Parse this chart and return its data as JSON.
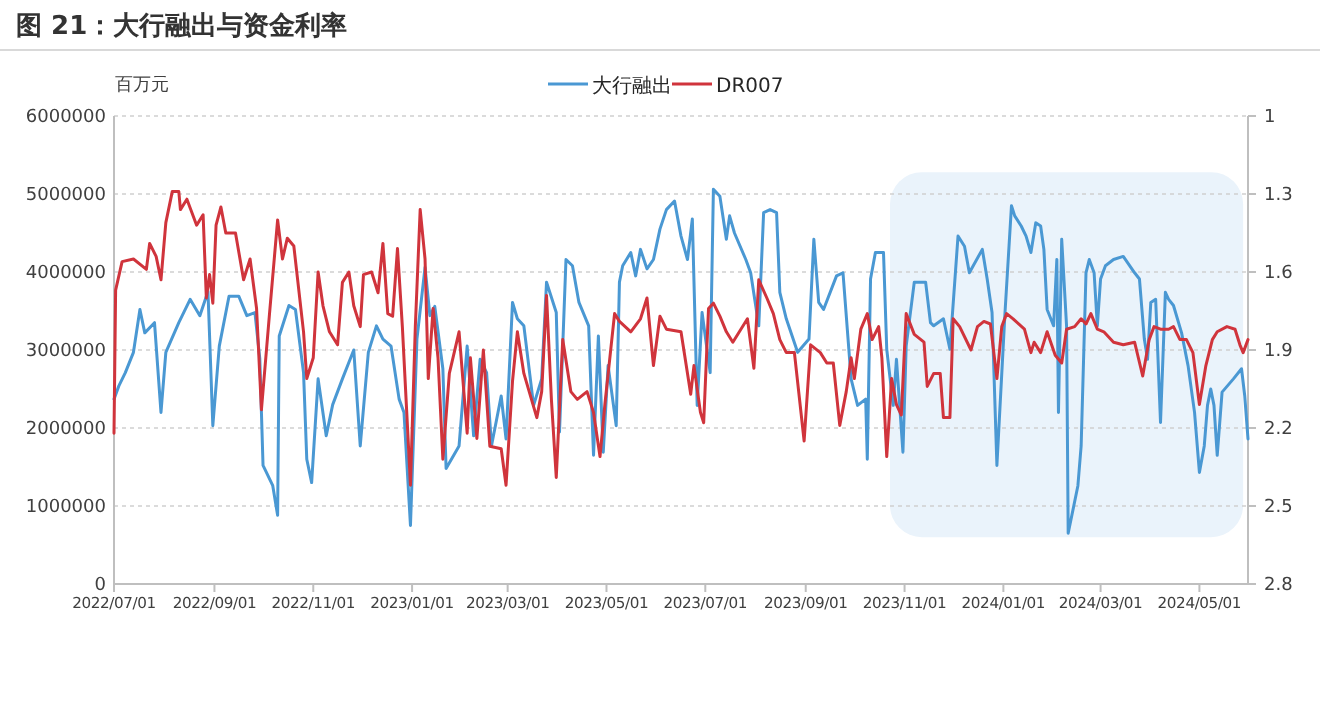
{
  "chart_data": {
    "type": "line",
    "title": "图 21：大行融出与资金利率",
    "ylabel": "百万元",
    "legend": "top",
    "grid": "y",
    "xlim": [
      "2022-07-01",
      "2024-05-31"
    ],
    "xticks": [
      {
        "value": "2022-07-01",
        "label": "2022/07/01"
      },
      {
        "value": "2022-09-01",
        "label": "2022/09/01"
      },
      {
        "value": "2022-11-01",
        "label": "2022/11/01"
      },
      {
        "value": "2023-01-01",
        "label": "2023/01/01"
      },
      {
        "value": "2023-03-01",
        "label": "2023/03/01"
      },
      {
        "value": "2023-05-01",
        "label": "2023/05/01"
      },
      {
        "value": "2023-07-01",
        "label": "2023/07/01"
      },
      {
        "value": "2023-09-01",
        "label": "2023/09/01"
      },
      {
        "value": "2023-11-01",
        "label": "2023/11/01"
      },
      {
        "value": "2024-01-01",
        "label": "2024/01/01"
      },
      {
        "value": "2024-03-01",
        "label": "2024/03/01"
      },
      {
        "value": "2024-05-01",
        "label": "2024/05/01"
      }
    ],
    "ylim": [
      0,
      6000000
    ],
    "yticks": [
      0,
      1000000,
      2000000,
      3000000,
      4000000,
      5000000,
      6000000
    ],
    "y2lim": [
      2.8,
      1
    ],
    "y2ticks": [
      1,
      1.3,
      1.6,
      1.9,
      2.2,
      2.5,
      2.8
    ],
    "bands": [
      {
        "axis": "x",
        "from": "2023-10-23",
        "to": "2024-05-28",
        "color": "#eaf3fb"
      }
    ],
    "series": [
      {
        "name": "大行融出",
        "color": "#4a98d3",
        "x": [
          "2022-07-01",
          "2022-07-04",
          "2022-07-08",
          "2022-07-13",
          "2022-07-17",
          "2022-07-20",
          "2022-07-26",
          "2022-07-30",
          "2022-08-02",
          "2022-08-10",
          "2022-08-17",
          "2022-08-23",
          "2022-08-28",
          "2022-08-31",
          "2022-09-04",
          "2022-09-10",
          "2022-09-16",
          "2022-09-21",
          "2022-09-26",
          "2022-09-29",
          "2022-10-01",
          "2022-10-07",
          "2022-10-10",
          "2022-10-11",
          "2022-10-17",
          "2022-10-21",
          "2022-10-26",
          "2022-10-28",
          "2022-10-31",
          "2022-11-04",
          "2022-11-09",
          "2022-11-13",
          "2022-11-19",
          "2022-11-26",
          "2022-11-30",
          "2022-12-05",
          "2022-12-10",
          "2022-12-14",
          "2022-12-19",
          "2022-12-24",
          "2022-12-27",
          "2022-12-31",
          "2023-01-04",
          "2023-01-09",
          "2023-01-12",
          "2023-01-15",
          "2023-01-20",
          "2023-01-22",
          "2023-01-30",
          "2023-02-04",
          "2023-02-08",
          "2023-02-12",
          "2023-02-16",
          "2023-02-19",
          "2023-02-25",
          "2023-02-28",
          "2023-03-04",
          "2023-03-07",
          "2023-03-11",
          "2023-03-17",
          "2023-03-22",
          "2023-03-25",
          "2023-03-31",
          "2023-04-02",
          "2023-04-06",
          "2023-04-10",
          "2023-04-14",
          "2023-04-20",
          "2023-04-23",
          "2023-04-26",
          "2023-04-29",
          "2023-05-02",
          "2023-05-07",
          "2023-05-09",
          "2023-05-11",
          "2023-05-16",
          "2023-05-19",
          "2023-05-22",
          "2023-05-26",
          "2023-05-30",
          "2023-06-03",
          "2023-06-07",
          "2023-06-12",
          "2023-06-16",
          "2023-06-20",
          "2023-06-23",
          "2023-06-26",
          "2023-06-29",
          "2023-07-04",
          "2023-07-06",
          "2023-07-10",
          "2023-07-14",
          "2023-07-16",
          "2023-07-19",
          "2023-07-26",
          "2023-07-29",
          "2023-08-03",
          "2023-08-06",
          "2023-08-10",
          "2023-08-14",
          "2023-08-16",
          "2023-08-20",
          "2023-08-27",
          "2023-09-03",
          "2023-09-06",
          "2023-09-09",
          "2023-09-12",
          "2023-09-20",
          "2023-09-24",
          "2023-09-29",
          "2023-10-03",
          "2023-10-08",
          "2023-10-09",
          "2023-10-11",
          "2023-10-14",
          "2023-10-19",
          "2023-10-21",
          "2023-10-25",
          "2023-10-27",
          "2023-10-31",
          "2023-11-02",
          "2023-11-07",
          "2023-11-14",
          "2023-11-17",
          "2023-11-19",
          "2023-11-25",
          "2023-11-29",
          "2023-12-04",
          "2023-12-08",
          "2023-12-11",
          "2023-12-19",
          "2023-12-22",
          "2023-12-25",
          "2023-12-28",
          "2024-01-02",
          "2024-01-06",
          "2024-01-08",
          "2024-01-12",
          "2024-01-15",
          "2024-01-18",
          "2024-01-21",
          "2024-01-24",
          "2024-01-26",
          "2024-01-28",
          "2024-02-01",
          "2024-02-03",
          "2024-02-04",
          "2024-02-06",
          "2024-02-09",
          "2024-02-10",
          "2024-02-16",
          "2024-02-18",
          "2024-02-21",
          "2024-02-23",
          "2024-02-26",
          "2024-02-28",
          "2024-03-01",
          "2024-03-04",
          "2024-03-09",
          "2024-03-15",
          "2024-03-22",
          "2024-03-25",
          "2024-03-28",
          "2024-03-30",
          "2024-04-01",
          "2024-04-04",
          "2024-04-07",
          "2024-04-10",
          "2024-04-12",
          "2024-04-15",
          "2024-04-20",
          "2024-04-24",
          "2024-04-28",
          "2024-05-01",
          "2024-05-04",
          "2024-05-06",
          "2024-05-08",
          "2024-05-10",
          "2024-05-12",
          "2024-05-15",
          "2024-05-22",
          "2024-05-27",
          "2024-05-29",
          "2024-05-31"
        ],
        "values": [
          2370000,
          2540000,
          2710000,
          2970000,
          3520000,
          3220000,
          3350000,
          2200000,
          2970000,
          3350000,
          3650000,
          3440000,
          3750000,
          2030000,
          3050000,
          3690000,
          3690000,
          3440000,
          3480000,
          2890000,
          1520000,
          1260000,
          880000,
          3180000,
          3570000,
          3520000,
          2710000,
          1600000,
          1300000,
          2630000,
          1900000,
          2300000,
          2630000,
          3000000,
          1770000,
          2970000,
          3310000,
          3140000,
          3050000,
          2370000,
          2200000,
          750000,
          3140000,
          4060000,
          3440000,
          3560000,
          2760000,
          1480000,
          1770000,
          3050000,
          1900000,
          2880000,
          2710000,
          1770000,
          2410000,
          1860000,
          3610000,
          3400000,
          3310000,
          2290000,
          2630000,
          3870000,
          3480000,
          1950000,
          4160000,
          4080000,
          3610000,
          3310000,
          1650000,
          3180000,
          1690000,
          2800000,
          2030000,
          3870000,
          4080000,
          4250000,
          3950000,
          4290000,
          4040000,
          4160000,
          4550000,
          4800000,
          4910000,
          4460000,
          4160000,
          4680000,
          2290000,
          3480000,
          2710000,
          5060000,
          4970000,
          4420000,
          4720000,
          4500000,
          4160000,
          3990000,
          3310000,
          4760000,
          4800000,
          4760000,
          3740000,
          3400000,
          2970000,
          3140000,
          4420000,
          3610000,
          3520000,
          3950000,
          3990000,
          2630000,
          2290000,
          2370000,
          1600000,
          3910000,
          4250000,
          4250000,
          3010000,
          2290000,
          2880000,
          1690000,
          3050000,
          3870000,
          3870000,
          3350000,
          3310000,
          3400000,
          3010000,
          4460000,
          4330000,
          3990000,
          4290000,
          3910000,
          3480000,
          1520000,
          3480000,
          4850000,
          4720000,
          4590000,
          4460000,
          4250000,
          4630000,
          4590000,
          4290000,
          3520000,
          3310000,
          4160000,
          2200000,
          4420000,
          3310000,
          650000,
          1260000,
          1770000,
          3990000,
          4160000,
          3990000,
          3310000,
          3910000,
          4080000,
          4160000,
          4200000,
          3990000,
          3910000,
          3140000,
          2880000,
          3610000,
          3650000,
          2070000,
          3740000,
          3650000,
          3570000,
          3220000,
          2800000,
          2200000,
          1430000,
          1770000,
          2290000,
          2500000,
          2290000,
          1650000,
          2460000,
          2630000,
          2760000,
          2410000,
          1860000
        ]
      },
      {
        "name": "DR007",
        "color": "#d0343c",
        "axis": "y2",
        "x": [
          "2022-07-01",
          "2022-07-02",
          "2022-07-06",
          "2022-07-13",
          "2022-07-21",
          "2022-07-23",
          "2022-07-27",
          "2022-07-30",
          "2022-08-02",
          "2022-08-06",
          "2022-08-10",
          "2022-08-11",
          "2022-08-15",
          "2022-08-21",
          "2022-08-25",
          "2022-08-27",
          "2022-08-29",
          "2022-08-31",
          "2022-09-02",
          "2022-09-05",
          "2022-09-08",
          "2022-09-14",
          "2022-09-19",
          "2022-09-23",
          "2022-09-27",
          "2022-09-30",
          "2022-10-05",
          "2022-10-10",
          "2022-10-13",
          "2022-10-16",
          "2022-10-20",
          "2022-10-26",
          "2022-10-28",
          "2022-11-01",
          "2022-11-04",
          "2022-11-07",
          "2022-11-11",
          "2022-11-16",
          "2022-11-19",
          "2022-11-23",
          "2022-11-26",
          "2022-11-30",
          "2022-12-02",
          "2022-12-07",
          "2022-12-11",
          "2022-12-14",
          "2022-12-17",
          "2022-12-20",
          "2022-12-23",
          "2022-12-26",
          "2022-12-31",
          "2023-01-03",
          "2023-01-06",
          "2023-01-09",
          "2023-01-11",
          "2023-01-14",
          "2023-01-17",
          "2023-01-20",
          "2023-01-24",
          "2023-01-30",
          "2023-02-04",
          "2023-02-06",
          "2023-02-10",
          "2023-02-14",
          "2023-02-18",
          "2023-02-25",
          "2023-02-28",
          "2023-03-04",
          "2023-03-07",
          "2023-03-11",
          "2023-03-19",
          "2023-03-22",
          "2023-03-25",
          "2023-03-28",
          "2023-03-31",
          "2023-04-04",
          "2023-04-09",
          "2023-04-13",
          "2023-04-19",
          "2023-04-23",
          "2023-04-27",
          "2023-04-30",
          "2023-05-06",
          "2023-05-09",
          "2023-05-16",
          "2023-05-22",
          "2023-05-26",
          "2023-05-30",
          "2023-06-03",
          "2023-06-07",
          "2023-06-16",
          "2023-06-22",
          "2023-06-24",
          "2023-06-28",
          "2023-06-30",
          "2023-07-03",
          "2023-07-06",
          "2023-07-10",
          "2023-07-14",
          "2023-07-18",
          "2023-07-27",
          "2023-07-31",
          "2023-08-03",
          "2023-08-08",
          "2023-08-12",
          "2023-08-16",
          "2023-08-20",
          "2023-08-25",
          "2023-08-31",
          "2023-09-04",
          "2023-09-10",
          "2023-09-14",
          "2023-09-18",
          "2023-09-22",
          "2023-09-26",
          "2023-09-29",
          "2023-10-01",
          "2023-10-05",
          "2023-10-09",
          "2023-10-12",
          "2023-10-16",
          "2023-10-18",
          "2023-10-21",
          "2023-10-24",
          "2023-10-27",
          "2023-10-30",
          "2023-11-02",
          "2023-11-07",
          "2023-11-13",
          "2023-11-15",
          "2023-11-19",
          "2023-11-23",
          "2023-11-25",
          "2023-11-29",
          "2023-12-01",
          "2023-12-05",
          "2023-12-12",
          "2023-12-16",
          "2023-12-20",
          "2023-12-24",
          "2023-12-28",
          "2023-12-31",
          "2024-01-03",
          "2024-01-07",
          "2024-01-14",
          "2024-01-18",
          "2024-01-20",
          "2024-01-24",
          "2024-01-28",
          "2024-02-02",
          "2024-02-06",
          "2024-02-09",
          "2024-02-14",
          "2024-02-18",
          "2024-02-21",
          "2024-02-24",
          "2024-02-28",
          "2024-03-03",
          "2024-03-09",
          "2024-03-15",
          "2024-03-22",
          "2024-03-27",
          "2024-03-31",
          "2024-04-03",
          "2024-04-07",
          "2024-04-12",
          "2024-04-15",
          "2024-04-19",
          "2024-04-23",
          "2024-04-27",
          "2024-05-01",
          "2024-05-05",
          "2024-05-09",
          "2024-05-12",
          "2024-05-18",
          "2024-05-23",
          "2024-05-26",
          "2024-05-28",
          "2024-05-31"
        ],
        "values": [
          2.22,
          1.67,
          1.56,
          1.55,
          1.59,
          1.49,
          1.54,
          1.63,
          1.41,
          1.29,
          1.29,
          1.36,
          1.32,
          1.42,
          1.38,
          1.7,
          1.61,
          1.72,
          1.42,
          1.35,
          1.45,
          1.45,
          1.63,
          1.55,
          1.74,
          2.13,
          1.76,
          1.4,
          1.55,
          1.47,
          1.5,
          1.83,
          2.01,
          1.93,
          1.6,
          1.73,
          1.83,
          1.88,
          1.64,
          1.6,
          1.73,
          1.81,
          1.61,
          1.6,
          1.68,
          1.49,
          1.76,
          1.77,
          1.51,
          1.81,
          2.42,
          1.81,
          1.36,
          1.55,
          2.01,
          1.74,
          1.93,
          2.32,
          1.99,
          1.83,
          2.22,
          1.93,
          2.24,
          1.9,
          2.27,
          2.28,
          2.42,
          2.02,
          1.83,
          1.99,
          2.16,
          2.06,
          1.69,
          2.09,
          2.39,
          1.86,
          2.06,
          2.09,
          2.06,
          2.14,
          2.31,
          2.11,
          1.76,
          1.79,
          1.83,
          1.78,
          1.7,
          1.96,
          1.77,
          1.82,
          1.83,
          2.07,
          1.96,
          2.14,
          2.18,
          1.74,
          1.72,
          1.77,
          1.83,
          1.87,
          1.78,
          1.97,
          1.63,
          1.7,
          1.76,
          1.86,
          1.91,
          1.91,
          2.25,
          1.88,
          1.91,
          1.95,
          1.95,
          2.19,
          2.06,
          1.93,
          2.01,
          1.82,
          1.76,
          1.86,
          1.81,
          1.93,
          2.31,
          2.01,
          2.11,
          2.15,
          1.76,
          1.84,
          1.87,
          2.04,
          1.99,
          1.99,
          2.16,
          2.16,
          1.78,
          1.81,
          1.9,
          1.81,
          1.79,
          1.8,
          2.01,
          1.81,
          1.76,
          1.78,
          1.82,
          1.91,
          1.87,
          1.91,
          1.83,
          1.92,
          1.95,
          1.82,
          1.81,
          1.78,
          1.8,
          1.76,
          1.82,
          1.83,
          1.87,
          1.88,
          1.87,
          2.0,
          1.86,
          1.81,
          1.82,
          1.82,
          1.81,
          1.86,
          1.86,
          1.91,
          2.11,
          1.96,
          1.86,
          1.83,
          1.81,
          1.82,
          1.88,
          1.91,
          1.86
        ]
      }
    ]
  }
}
